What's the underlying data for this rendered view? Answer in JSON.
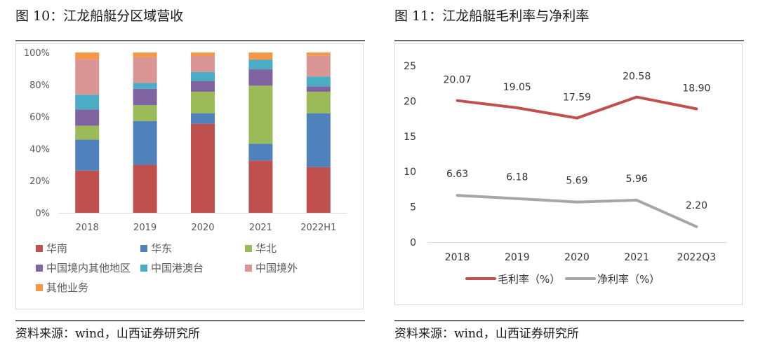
{
  "left": {
    "figure_title": "图 10：江龙船艇分区域营收",
    "source": "资料来源：wind，山西证券研究所"
  },
  "right": {
    "figure_title": "图 11：江龙船艇毛利率与净利率",
    "source": "资料来源：wind，山西证券研究所"
  },
  "chart_data": [
    {
      "type": "bar",
      "stacked": true,
      "title": "江龙船艇分区域营收",
      "xlabel": "",
      "ylabel": "",
      "categories": [
        "2018",
        "2019",
        "2020",
        "2021",
        "2022H1"
      ],
      "ylim": [
        0,
        100
      ],
      "yticks": [
        "0%",
        "20%",
        "40%",
        "60%",
        "80%",
        "100%"
      ],
      "y_tick_values": [
        0,
        20,
        40,
        60,
        80,
        100
      ],
      "grid": false,
      "legend_position": "bottom",
      "series": [
        {
          "name": "华南",
          "color": "#C0504D",
          "values": [
            26.3,
            29.9,
            55.5,
            32.6,
            28.5
          ]
        },
        {
          "name": "华东",
          "color": "#4F81BD",
          "values": [
            19.4,
            27.3,
            6.6,
            10.5,
            33.6
          ]
        },
        {
          "name": "华北",
          "color": "#9BBB59",
          "values": [
            8.6,
            9.9,
            13.4,
            36.2,
            13.4
          ]
        },
        {
          "name": "中国境内其他地区",
          "color": "#8064A2",
          "values": [
            10.2,
            10.2,
            6.6,
            10.2,
            3.4
          ]
        },
        {
          "name": "中国港澳台",
          "color": "#4BACC6",
          "values": [
            9.2,
            3.6,
            5.8,
            6.1,
            6.1
          ]
        },
        {
          "name": "中国境外",
          "color": "#D99694",
          "values": [
            22.2,
            16.1,
            9.9,
            0.0,
            13.1
          ]
        },
        {
          "name": "其他业务",
          "color": "#F79646",
          "values": [
            4.1,
            2.9,
            2.2,
            4.4,
            1.9
          ]
        }
      ]
    },
    {
      "type": "line",
      "title": "江龙船艇毛利率与净利率",
      "xlabel": "",
      "ylabel": "",
      "categories": [
        "2018",
        "2019",
        "2020",
        "2021",
        "2022Q3"
      ],
      "ylim": [
        0,
        25
      ],
      "yticks": [
        "0",
        "5",
        "10",
        "15",
        "20",
        "25"
      ],
      "y_tick_values": [
        0,
        5,
        10,
        15,
        20,
        25
      ],
      "grid": false,
      "legend_position": "bottom",
      "series": [
        {
          "name": "毛利率（%）",
          "color": "#C0504D",
          "values": [
            20.07,
            19.05,
            17.59,
            20.58,
            18.9
          ],
          "labels": [
            "20.07",
            "19.05",
            "17.59",
            "20.58",
            "18.90"
          ]
        },
        {
          "name": "净利率（%）",
          "color": "#A6A6A6",
          "values": [
            6.63,
            6.18,
            5.69,
            5.96,
            2.2
          ],
          "labels": [
            "6.63",
            "6.18",
            "5.69",
            "5.96",
            "2.20"
          ]
        }
      ]
    }
  ]
}
